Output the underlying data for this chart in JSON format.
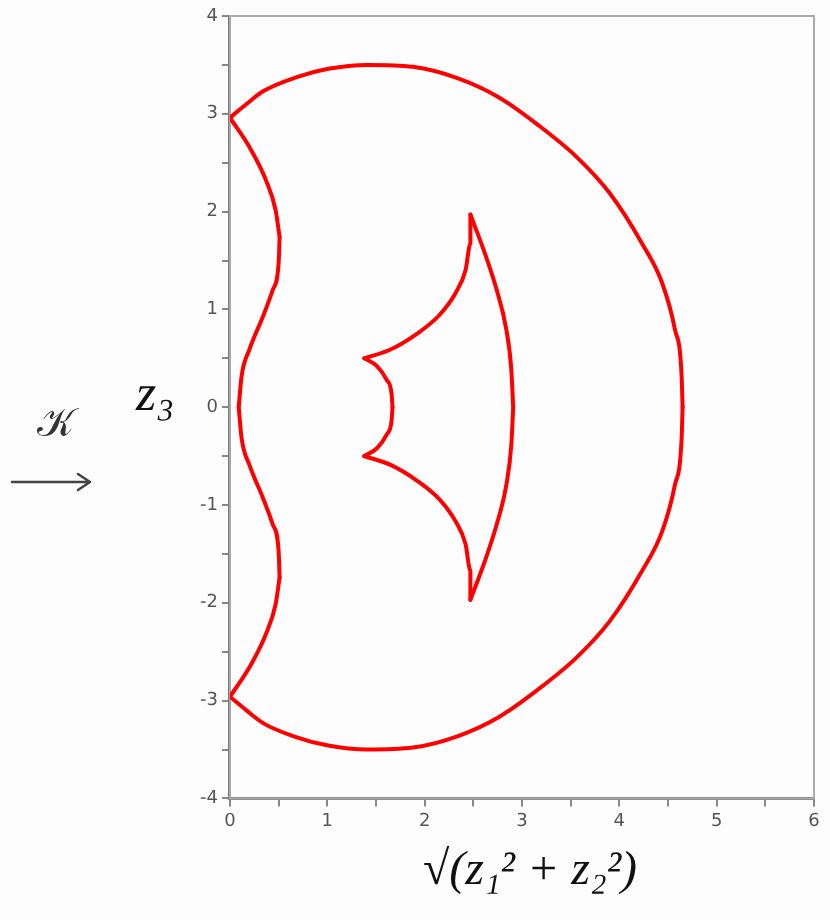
{
  "chart_data": {
    "type": "line",
    "xlabel": "√(z₁² + z₂²)",
    "ylabel": "z₃",
    "annotations": [
      "𝒦"
    ],
    "xlim": [
      0,
      6
    ],
    "ylim": [
      -4,
      4
    ],
    "xticks": [
      0,
      {
        "value": 0.5,
        "label": null
      },
      1,
      {
        "value": 1.5,
        "label": null
      },
      2,
      {
        "value": 2.5,
        "label": null
      },
      3,
      {
        "value": 3.5,
        "label": null
      },
      4,
      {
        "value": 4.5,
        "label": null
      },
      5,
      {
        "value": 5.5,
        "label": null
      },
      6
    ],
    "yticks": [
      -4,
      {
        "value": -3.5,
        "label": null
      },
      -3,
      {
        "value": -2.5,
        "label": null
      },
      -2,
      {
        "value": -1.5,
        "label": null
      },
      -1,
      {
        "value": -0.5,
        "label": null
      },
      0,
      {
        "value": 0.5,
        "label": null
      },
      1,
      {
        "value": 1.5,
        "label": null
      },
      2,
      {
        "value": 2.5,
        "label": null
      },
      3,
      {
        "value": 3.5,
        "label": null
      },
      4
    ],
    "grid": false,
    "legend": false,
    "marker": "none",
    "line_style": "solid",
    "series": [
      {
        "color": "#ff0000",
        "x": [
          0,
          0.17,
          0.34,
          0.67,
          1.01,
          1.41,
          1.88,
          2.35,
          2.76,
          3.16,
          3.56,
          3.9,
          4.23,
          4.44,
          4.57,
          4.64,
          4.65
        ],
        "values": [
          2.96,
          3.1,
          3.23,
          3.37,
          3.46,
          3.5,
          3.48,
          3.36,
          3.17,
          2.89,
          2.56,
          2.19,
          1.68,
          1.27,
          0.8,
          0.32,
          0
        ]
      },
      {
        "color": "#ff0000",
        "x": [
          0,
          0.17,
          0.34,
          0.67,
          1.01,
          1.41,
          1.88,
          2.35,
          2.76,
          3.16,
          3.56,
          3.9,
          4.23,
          4.44,
          4.57,
          4.64,
          4.65
        ],
        "values": [
          -2.96,
          -3.1,
          -3.23,
          -3.37,
          -3.46,
          -3.5,
          -3.48,
          -3.36,
          -3.17,
          -2.89,
          -2.56,
          -2.19,
          -1.68,
          -1.27,
          -0.8,
          -0.32,
          0
        ]
      },
      {
        "color": "#ff0000",
        "x": [
          0,
          0.2,
          0.37,
          0.47,
          0.51
        ],
        "values": [
          2.96,
          2.66,
          2.32,
          2.01,
          1.74
        ]
      },
      {
        "color": "#ff0000",
        "x": [
          0.09,
          0.12,
          0.2,
          0.34,
          0.44,
          0.5,
          0.51
        ],
        "values": [
          0,
          0.32,
          0.59,
          0.93,
          1.2,
          1.47,
          1.74
        ]
      },
      {
        "color": "#ff0000",
        "x": [
          0.09,
          0.12,
          0.2,
          0.34,
          0.44,
          0.5,
          0.51
        ],
        "values": [
          0,
          -0.32,
          -0.59,
          -0.93,
          -1.2,
          -1.47,
          -1.74
        ]
      },
      {
        "color": "#ff0000",
        "x": [
          0,
          0.2,
          0.37,
          0.47,
          0.51
        ],
        "values": [
          -2.96,
          -2.66,
          -2.32,
          -2.01,
          -1.74
        ]
      },
      {
        "color": "#ff0000",
        "x": [
          2.47,
          2.62,
          2.74,
          2.84,
          2.89,
          2.91
        ],
        "values": [
          1.97,
          1.57,
          1.2,
          0.79,
          0.39,
          0
        ]
      },
      {
        "color": "#ff0000",
        "x": [
          2.47,
          2.62,
          2.74,
          2.84,
          2.89,
          2.91
        ],
        "values": [
          -1.97,
          -1.57,
          -1.2,
          -0.79,
          -0.39,
          0
        ]
      },
      {
        "color": "#ff0000",
        "x": [
          1.38,
          1.65,
          1.92,
          2.15,
          2.32,
          2.42,
          2.47,
          2.47
        ],
        "values": [
          0.5,
          0.59,
          0.75,
          0.94,
          1.17,
          1.4,
          1.67,
          1.97
        ]
      },
      {
        "color": "#ff0000",
        "x": [
          1.38,
          1.65,
          1.92,
          2.15,
          2.32,
          2.42,
          2.47,
          2.47
        ],
        "values": [
          -0.5,
          -0.59,
          -0.75,
          -0.94,
          -1.17,
          -1.4,
          -1.67,
          -1.97
        ]
      },
      {
        "color": "#ff0000",
        "x": [
          1.38,
          1.51,
          1.61,
          1.66,
          1.67
        ],
        "values": [
          0.5,
          0.42,
          0.28,
          0.14,
          0
        ]
      },
      {
        "color": "#ff0000",
        "x": [
          1.38,
          1.51,
          1.61,
          1.66,
          1.67
        ],
        "values": [
          -0.5,
          -0.42,
          -0.28,
          -0.14,
          0
        ]
      }
    ]
  }
}
